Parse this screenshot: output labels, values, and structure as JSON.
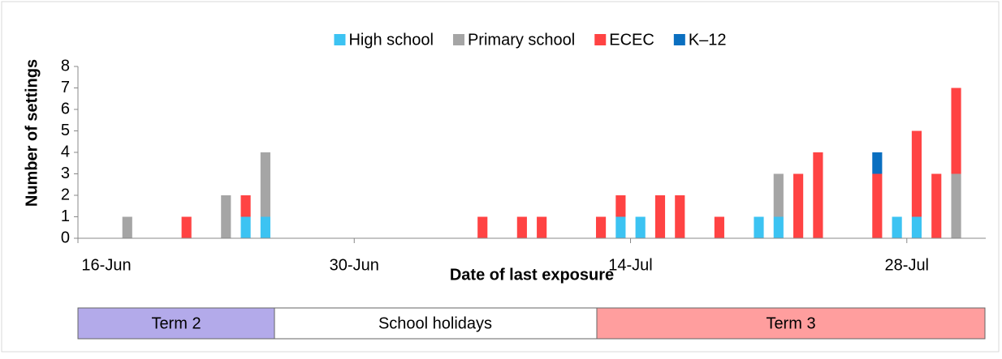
{
  "chart_data": {
    "type": "bar",
    "stacked": true,
    "x_label": "Date of last exposure",
    "y_label": "Number of settings",
    "categories": [
      "16-Jun",
      null,
      null,
      null,
      null,
      null,
      null,
      null,
      null,
      null,
      null,
      null,
      null,
      null,
      "30-Jun",
      null,
      null,
      null,
      null,
      null,
      null,
      null,
      null,
      null,
      null,
      null,
      null,
      null,
      "14-Jul",
      null,
      null,
      null,
      null,
      null,
      null,
      null,
      null,
      null,
      null,
      null,
      null,
      null,
      "28-Jul",
      null,
      null,
      null
    ],
    "series": [
      {
        "name": "High school",
        "color": "#3cc3f2",
        "values": [
          0,
          0,
          0,
          0,
          0,
          0,
          0,
          0,
          1,
          1,
          0,
          0,
          0,
          0,
          0,
          0,
          0,
          0,
          0,
          0,
          0,
          0,
          0,
          0,
          0,
          0,
          0,
          1,
          1,
          0,
          0,
          0,
          0,
          0,
          1,
          1,
          0,
          0,
          0,
          0,
          0,
          1,
          1,
          0,
          0,
          0
        ]
      },
      {
        "name": "Primary school",
        "color": "#a5a5a5",
        "values": [
          0,
          0,
          1,
          0,
          0,
          0,
          0,
          2,
          0,
          3,
          0,
          0,
          0,
          0,
          0,
          0,
          0,
          0,
          0,
          0,
          0,
          0,
          0,
          0,
          0,
          0,
          0,
          0,
          0,
          0,
          0,
          0,
          0,
          0,
          0,
          2,
          0,
          0,
          0,
          0,
          0,
          0,
          0,
          0,
          3,
          0
        ]
      },
      {
        "name": "ECEC",
        "color": "#ff4343",
        "values": [
          0,
          0,
          0,
          0,
          0,
          1,
          0,
          0,
          1,
          0,
          0,
          0,
          0,
          0,
          0,
          0,
          0,
          0,
          0,
          0,
          1,
          0,
          1,
          1,
          0,
          0,
          1,
          1,
          0,
          2,
          2,
          0,
          1,
          0,
          0,
          0,
          3,
          4,
          0,
          0,
          3,
          0,
          4,
          3,
          4,
          0
        ]
      },
      {
        "name": "K–12",
        "color": "#0a6fc0",
        "values": [
          0,
          0,
          0,
          0,
          0,
          0,
          0,
          0,
          0,
          0,
          0,
          0,
          0,
          0,
          0,
          0,
          0,
          0,
          0,
          0,
          0,
          0,
          0,
          0,
          0,
          0,
          0,
          0,
          0,
          0,
          0,
          0,
          0,
          0,
          0,
          0,
          0,
          0,
          0,
          0,
          1,
          0,
          0,
          0,
          0,
          0
        ]
      }
    ],
    "ylim": [
      0,
      8
    ],
    "yticks": [
      0,
      1,
      2,
      3,
      4,
      5,
      6,
      7,
      8
    ],
    "terms": [
      "Term 2",
      "School holidays",
      "Term 3"
    ]
  }
}
